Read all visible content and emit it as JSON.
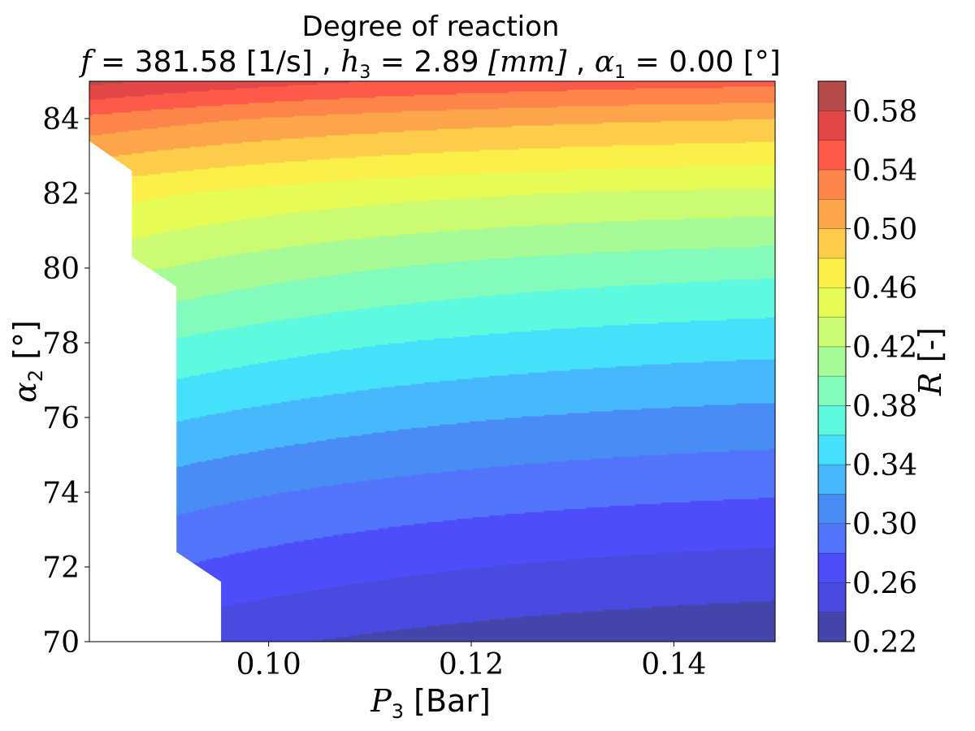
{
  "chart_data": {
    "type": "contourf",
    "title": "Degree of reaction",
    "subtitle": {
      "f_symbol": "f",
      "f_text": " = 381.58 [1/s] , ",
      "h_symbol": "h",
      "h_sub": "3",
      "h_text": " = 2.89 ",
      "h_unit": "[mm]",
      "a_symbol": "α",
      "a_sub": "1",
      "a_text": " = 0.00 [°]"
    },
    "xlabel": {
      "symbol": "P",
      "sub": "3",
      "text": " [Bar]"
    },
    "ylabel": {
      "symbol": "α",
      "sub": "2",
      "text": " [°]"
    },
    "xlim": [
      0.0823,
      0.15
    ],
    "ylim": [
      70,
      85
    ],
    "xticks": [
      0.1,
      0.12,
      0.14
    ],
    "xtick_labels": [
      "0.10",
      "0.12",
      "0.14"
    ],
    "yticks": [
      70,
      72,
      74,
      76,
      78,
      80,
      82,
      84
    ],
    "ytick_labels": [
      "70",
      "72",
      "74",
      "76",
      "78",
      "80",
      "82",
      "84"
    ],
    "colorbar": {
      "label": {
        "symbol": "R",
        "text": " [-]"
      },
      "levels": [
        0.22,
        0.24,
        0.26,
        0.28,
        0.3,
        0.32,
        0.34,
        0.36,
        0.38,
        0.4,
        0.42,
        0.44,
        0.46,
        0.48,
        0.5,
        0.52,
        0.54,
        0.56,
        0.58,
        0.6
      ],
      "ticks": [
        0.22,
        0.26,
        0.3,
        0.34,
        0.38,
        0.42,
        0.46,
        0.5,
        0.54,
        0.58
      ],
      "tick_labels": [
        "0.22",
        "0.26",
        "0.30",
        "0.34",
        "0.38",
        "0.42",
        "0.46",
        "0.50",
        "0.54",
        "0.58"
      ],
      "colors": [
        "#4444aa",
        "#4a4ae0",
        "#4d4dfa",
        "#5174fb",
        "#4a8cf6",
        "#47b8fb",
        "#45e1fb",
        "#5dfadf",
        "#83fbba",
        "#a6fb96",
        "#cafb73",
        "#e6fb56",
        "#fbf04a",
        "#fdcc4a",
        "#fda54a",
        "#fd854a",
        "#fd5a4a",
        "#e24646",
        "#b54a4a"
      ]
    },
    "field": {
      "description_free": true,
      "R_at_alpha2": [
        {
          "alpha2": 70.0,
          "R_at_x_min": 0.258,
          "R_at_x_max": 0.225
        },
        {
          "alpha2": 72.0,
          "R_at_x_min": 0.29,
          "R_at_x_max": 0.252
        },
        {
          "alpha2": 74.0,
          "R_at_x_min": 0.318,
          "R_at_x_max": 0.282
        },
        {
          "alpha2": 76.0,
          "R_at_x_min": 0.352,
          "R_at_x_max": 0.313
        },
        {
          "alpha2": 78.0,
          "R_at_x_min": 0.388,
          "R_at_x_max": 0.347
        },
        {
          "alpha2": 80.0,
          "R_at_x_min": 0.43,
          "R_at_x_max": 0.385
        },
        {
          "alpha2": 82.0,
          "R_at_x_min": 0.47,
          "R_at_x_max": 0.435
        },
        {
          "alpha2": 84.0,
          "R_at_x_min": 0.535,
          "R_at_x_max": 0.5
        },
        {
          "alpha2": 85.0,
          "R_at_x_min": 0.585,
          "R_at_x_max": 0.546
        }
      ],
      "x_curvature": 0.5
    },
    "invalid_region_boundary": [
      {
        "alpha2": 70.0,
        "P3_min": 0.0953
      },
      {
        "alpha2": 71.6,
        "P3_min": 0.0953
      },
      {
        "alpha2": 72.4,
        "P3_min": 0.0909
      },
      {
        "alpha2": 79.5,
        "P3_min": 0.0909
      },
      {
        "alpha2": 80.3,
        "P3_min": 0.0865
      },
      {
        "alpha2": 82.6,
        "P3_min": 0.0865
      },
      {
        "alpha2": 83.4,
        "P3_min": 0.0823
      },
      {
        "alpha2": 85.0,
        "P3_min": 0.0823
      }
    ]
  }
}
